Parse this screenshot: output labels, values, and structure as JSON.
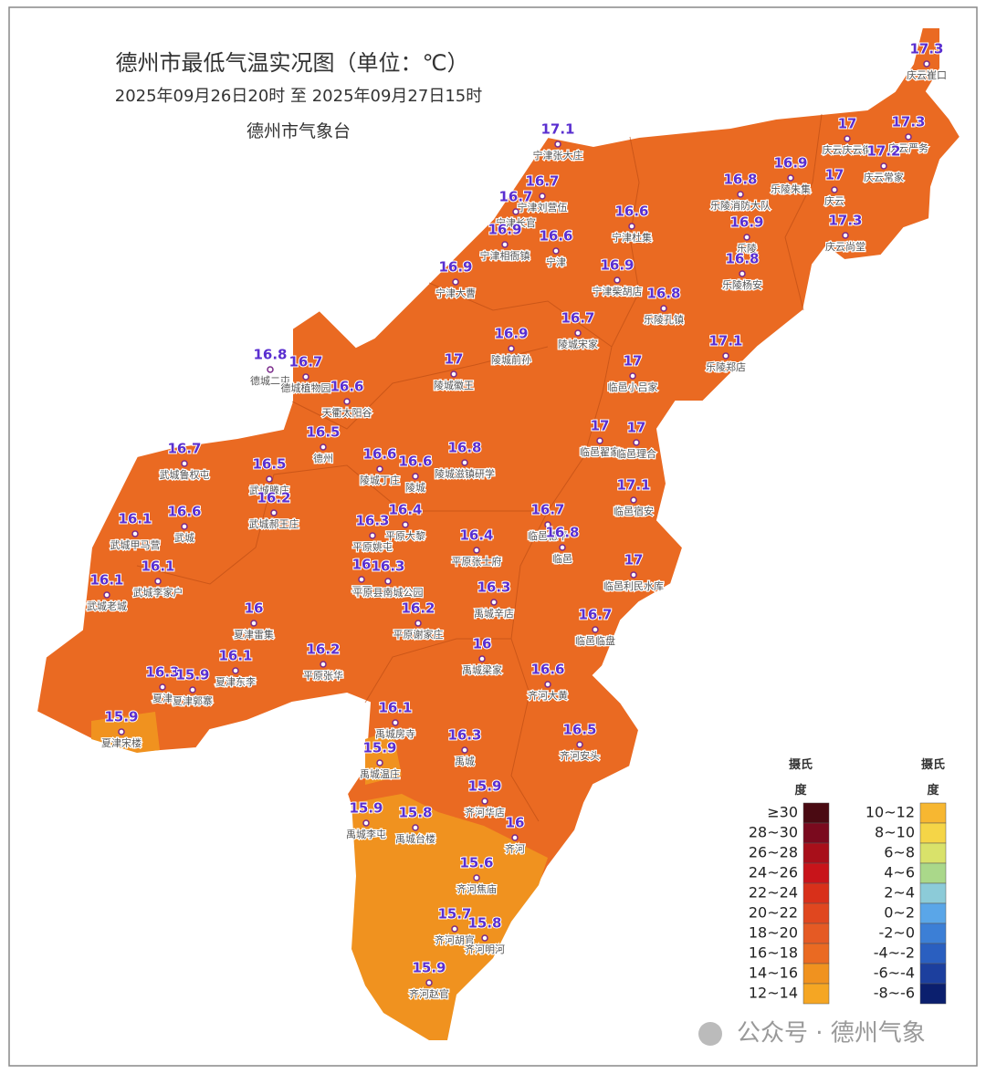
{
  "header": {
    "title": "德州市最低气温实况图（单位：℃）",
    "subtitle": "2025年09月26日20时  至  2025年09月27日15时",
    "agency": "德州市气象台"
  },
  "stations": [
    {
      "value": 17.3,
      "name": "庆云崔口"
    },
    {
      "value": 17.3,
      "name": "庆云严务"
    },
    {
      "value": 17,
      "name": "庆云庆云街"
    },
    {
      "value": 17.2,
      "name": "庆云常家"
    },
    {
      "value": 16.9,
      "name": "乐陵朱集"
    },
    {
      "value": 17,
      "name": "庆云"
    },
    {
      "value": 17.3,
      "name": "庆云尚堂"
    },
    {
      "value": 17.1,
      "name": "宁津张大庄"
    },
    {
      "value": 16.7,
      "name": "宁津刘营伍"
    },
    {
      "value": 16.7,
      "name": "宁津长官"
    },
    {
      "value": 16.9,
      "name": "宁津相衙镇"
    },
    {
      "value": 16.6,
      "name": "宁津"
    },
    {
      "value": 16.6,
      "name": "宁津杜集"
    },
    {
      "value": 16.8,
      "name": "乐陵消防大队"
    },
    {
      "value": 16.9,
      "name": "乐陵"
    },
    {
      "value": 16.8,
      "name": "乐陵杨安"
    },
    {
      "value": 16.9,
      "name": "宁津大曹"
    },
    {
      "value": 16.9,
      "name": "宁津柴胡店"
    },
    {
      "value": 16.8,
      "name": "乐陵孔镇"
    },
    {
      "value": 16.7,
      "name": "陵城宋家"
    },
    {
      "value": 16.9,
      "name": "陵城前孙"
    },
    {
      "value": 17,
      "name": "陵城徽王"
    },
    {
      "value": 17,
      "name": "临邑小吕家"
    },
    {
      "value": 17.1,
      "name": "乐陵郑店"
    },
    {
      "value": 16.8,
      "name": "德城二屯"
    },
    {
      "value": 16.7,
      "name": "德城植物园"
    },
    {
      "value": 16.6,
      "name": "天衢太阳谷"
    },
    {
      "value": 16.5,
      "name": "德州"
    },
    {
      "value": 16.7,
      "name": "武城鲁权屯"
    },
    {
      "value": 16.5,
      "name": "武城滕庄"
    },
    {
      "value": 16.2,
      "name": "武城郝王庄"
    },
    {
      "value": 16.6,
      "name": "陵城丁庄"
    },
    {
      "value": 16.6,
      "name": "陵城"
    },
    {
      "value": 16.8,
      "name": "陵城滋镇研学"
    },
    {
      "value": 17,
      "name": "临邑翟家"
    },
    {
      "value": 17,
      "name": "临邑理合"
    },
    {
      "value": 16.1,
      "name": "武城甲马营"
    },
    {
      "value": 16.6,
      "name": "武城"
    },
    {
      "value": 16.3,
      "name": "平原姚屯"
    },
    {
      "value": 16.4,
      "name": "平原大黎"
    },
    {
      "value": 16.4,
      "name": "平原张士府"
    },
    {
      "value": 16.7,
      "name": "临邑德平"
    },
    {
      "value": 16.8,
      "name": "临邑"
    },
    {
      "value": 17.1,
      "name": "临邑宿安"
    },
    {
      "value": 16.1,
      "name": "武城老城"
    },
    {
      "value": 16.1,
      "name": "武城李家户"
    },
    {
      "value": 16,
      "name": "平原"
    },
    {
      "value": 16.3,
      "name": "平原县南城公园"
    },
    {
      "value": 17,
      "name": "临邑利民水库"
    },
    {
      "value": 16.3,
      "name": "禹城辛店"
    },
    {
      "value": 16,
      "name": "夏津雷集"
    },
    {
      "value": 16.2,
      "name": "平原谢家庄"
    },
    {
      "value": 16.7,
      "name": "临邑临盘"
    },
    {
      "value": 16.2,
      "name": "平原张华"
    },
    {
      "value": 16,
      "name": "禹城梁家"
    },
    {
      "value": 16.1,
      "name": "夏津东李"
    },
    {
      "value": 16.3,
      "name": "夏津"
    },
    {
      "value": 15.9,
      "name": "夏津郭寨"
    },
    {
      "value": 16.6,
      "name": "齐河大黄"
    },
    {
      "value": 15.9,
      "name": "夏津宋楼"
    },
    {
      "value": 16.1,
      "name": "禹城房寺"
    },
    {
      "value": 16.3,
      "name": "禹城"
    },
    {
      "value": 16.5,
      "name": "齐河安头"
    },
    {
      "value": 15.9,
      "name": "禹城温庄"
    },
    {
      "value": 15.9,
      "name": "齐河华店"
    },
    {
      "value": 15.9,
      "name": "禹城李屯"
    },
    {
      "value": 15.8,
      "name": "禹城台楼"
    },
    {
      "value": 16,
      "name": "齐河"
    },
    {
      "value": 15.6,
      "name": "齐河焦庙"
    },
    {
      "value": 15.7,
      "name": "齐河胡官"
    },
    {
      "value": 15.8,
      "name": "齐河明河"
    },
    {
      "value": 15.9,
      "name": "齐河赵官"
    }
  ],
  "legend": [
    {
      "title": "摄氏度",
      "items": [
        {
          "label": "≥30",
          "color": "#4a0a12"
        },
        {
          "label": "28~30",
          "color": "#7a0a1e"
        },
        {
          "label": "26~28",
          "color": "#a80f1a"
        },
        {
          "label": "24~26",
          "color": "#c8141a"
        },
        {
          "label": "22~24",
          "color": "#d8301a"
        },
        {
          "label": "20~22",
          "color": "#e0471f"
        },
        {
          "label": "18~20",
          "color": "#e55a24"
        },
        {
          "label": "16~18",
          "color": "#ea6a22"
        },
        {
          "label": "14~16",
          "color": "#f0921f"
        },
        {
          "label": "12~14",
          "color": "#f5a623"
        }
      ]
    },
    {
      "title": "摄氏度",
      "items": [
        {
          "label": "10~12",
          "color": "#f7b731"
        },
        {
          "label": "8~10",
          "color": "#f5d547"
        },
        {
          "label": "6~8",
          "color": "#d9e26a"
        },
        {
          "label": "4~6",
          "color": "#aad88a"
        },
        {
          "label": "2~4",
          "color": "#8ccbd8"
        },
        {
          "label": "0~2",
          "color": "#5aa6e8"
        },
        {
          "label": "-2~0",
          "color": "#3c7fd6"
        },
        {
          "label": "-4~-2",
          "color": "#2a5fc0"
        },
        {
          "label": "-6~-4",
          "color": "#1c3f9e"
        },
        {
          "label": "-8~-6",
          "color": "#0b1f6e"
        }
      ]
    }
  ],
  "watermark": "公众号 · 德州气象"
}
